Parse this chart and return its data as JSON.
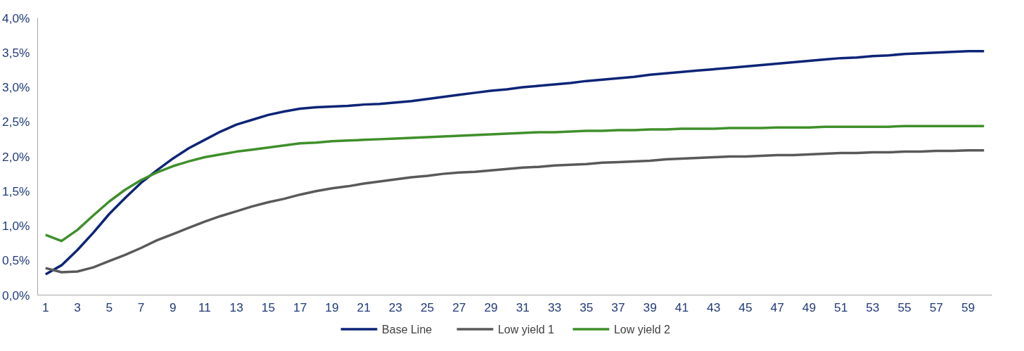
{
  "chart_data": {
    "type": "line",
    "x": [
      1,
      2,
      3,
      4,
      5,
      6,
      7,
      8,
      9,
      10,
      11,
      12,
      13,
      14,
      15,
      16,
      17,
      18,
      19,
      20,
      21,
      22,
      23,
      24,
      25,
      26,
      27,
      28,
      29,
      30,
      31,
      32,
      33,
      34,
      35,
      36,
      37,
      38,
      39,
      40,
      41,
      42,
      43,
      44,
      45,
      46,
      47,
      48,
      49,
      50,
      51,
      52,
      53,
      54,
      55,
      56,
      57,
      58,
      59,
      60
    ],
    "xlim": [
      0.5,
      60.5
    ],
    "xticks": [
      1,
      3,
      5,
      7,
      9,
      11,
      13,
      15,
      17,
      19,
      21,
      23,
      25,
      27,
      29,
      31,
      33,
      35,
      37,
      39,
      41,
      43,
      45,
      47,
      49,
      51,
      53,
      55,
      57,
      59
    ],
    "ylim": [
      0,
      4
    ],
    "yticks": [
      {
        "value": 0,
        "label": "0,0%"
      },
      {
        "value": 0.5,
        "label": "0,5%"
      },
      {
        "value": 1,
        "label": "1,0%"
      },
      {
        "value": 1.5,
        "label": "1,5%"
      },
      {
        "value": 2,
        "label": "2,0%"
      },
      {
        "value": 2.5,
        "label": "2,5%"
      },
      {
        "value": 3,
        "label": "3,0%"
      },
      {
        "value": 3.5,
        "label": "3,5%"
      },
      {
        "value": 4,
        "label": "4,0%"
      }
    ],
    "grid": false,
    "legend": "bottom",
    "marker": "none",
    "line_style": "solid",
    "series": [
      {
        "name": "Base Line",
        "color": "#0d2477",
        "values": [
          0.3,
          0.43,
          0.65,
          0.9,
          1.17,
          1.4,
          1.62,
          1.8,
          1.97,
          2.12,
          2.24,
          2.36,
          2.46,
          2.53,
          2.6,
          2.65,
          2.69,
          2.71,
          2.72,
          2.73,
          2.75,
          2.76,
          2.78,
          2.8,
          2.83,
          2.86,
          2.89,
          2.92,
          2.95,
          2.97,
          3.0,
          3.02,
          3.04,
          3.06,
          3.09,
          3.11,
          3.13,
          3.15,
          3.18,
          3.2,
          3.22,
          3.24,
          3.26,
          3.28,
          3.3,
          3.32,
          3.34,
          3.36,
          3.38,
          3.4,
          3.42,
          3.43,
          3.45,
          3.46,
          3.48,
          3.49,
          3.5,
          3.51,
          3.52,
          3.52
        ]
      },
      {
        "name": "Low yield 1",
        "color": "#595959",
        "values": [
          0.39,
          0.33,
          0.34,
          0.4,
          0.49,
          0.58,
          0.68,
          0.79,
          0.88,
          0.97,
          1.06,
          1.14,
          1.21,
          1.28,
          1.34,
          1.39,
          1.45,
          1.5,
          1.54,
          1.57,
          1.61,
          1.64,
          1.67,
          1.7,
          1.72,
          1.75,
          1.77,
          1.78,
          1.8,
          1.82,
          1.84,
          1.85,
          1.87,
          1.88,
          1.89,
          1.91,
          1.92,
          1.93,
          1.94,
          1.96,
          1.97,
          1.98,
          1.99,
          2.0,
          2.0,
          2.01,
          2.02,
          2.02,
          2.03,
          2.04,
          2.05,
          2.05,
          2.06,
          2.06,
          2.07,
          2.07,
          2.08,
          2.08,
          2.09,
          2.09
        ]
      },
      {
        "name": "Low yield 2",
        "color": "#3f8f2a",
        "values": [
          0.87,
          0.78,
          0.94,
          1.15,
          1.35,
          1.52,
          1.66,
          1.77,
          1.86,
          1.93,
          1.99,
          2.03,
          2.07,
          2.1,
          2.13,
          2.16,
          2.19,
          2.2,
          2.22,
          2.23,
          2.24,
          2.25,
          2.26,
          2.27,
          2.28,
          2.29,
          2.3,
          2.31,
          2.32,
          2.33,
          2.34,
          2.35,
          2.35,
          2.36,
          2.37,
          2.37,
          2.38,
          2.38,
          2.39,
          2.39,
          2.4,
          2.4,
          2.4,
          2.41,
          2.41,
          2.41,
          2.42,
          2.42,
          2.42,
          2.43,
          2.43,
          2.43,
          2.43,
          2.43,
          2.44,
          2.44,
          2.44,
          2.44,
          2.44,
          2.44
        ]
      }
    ]
  }
}
